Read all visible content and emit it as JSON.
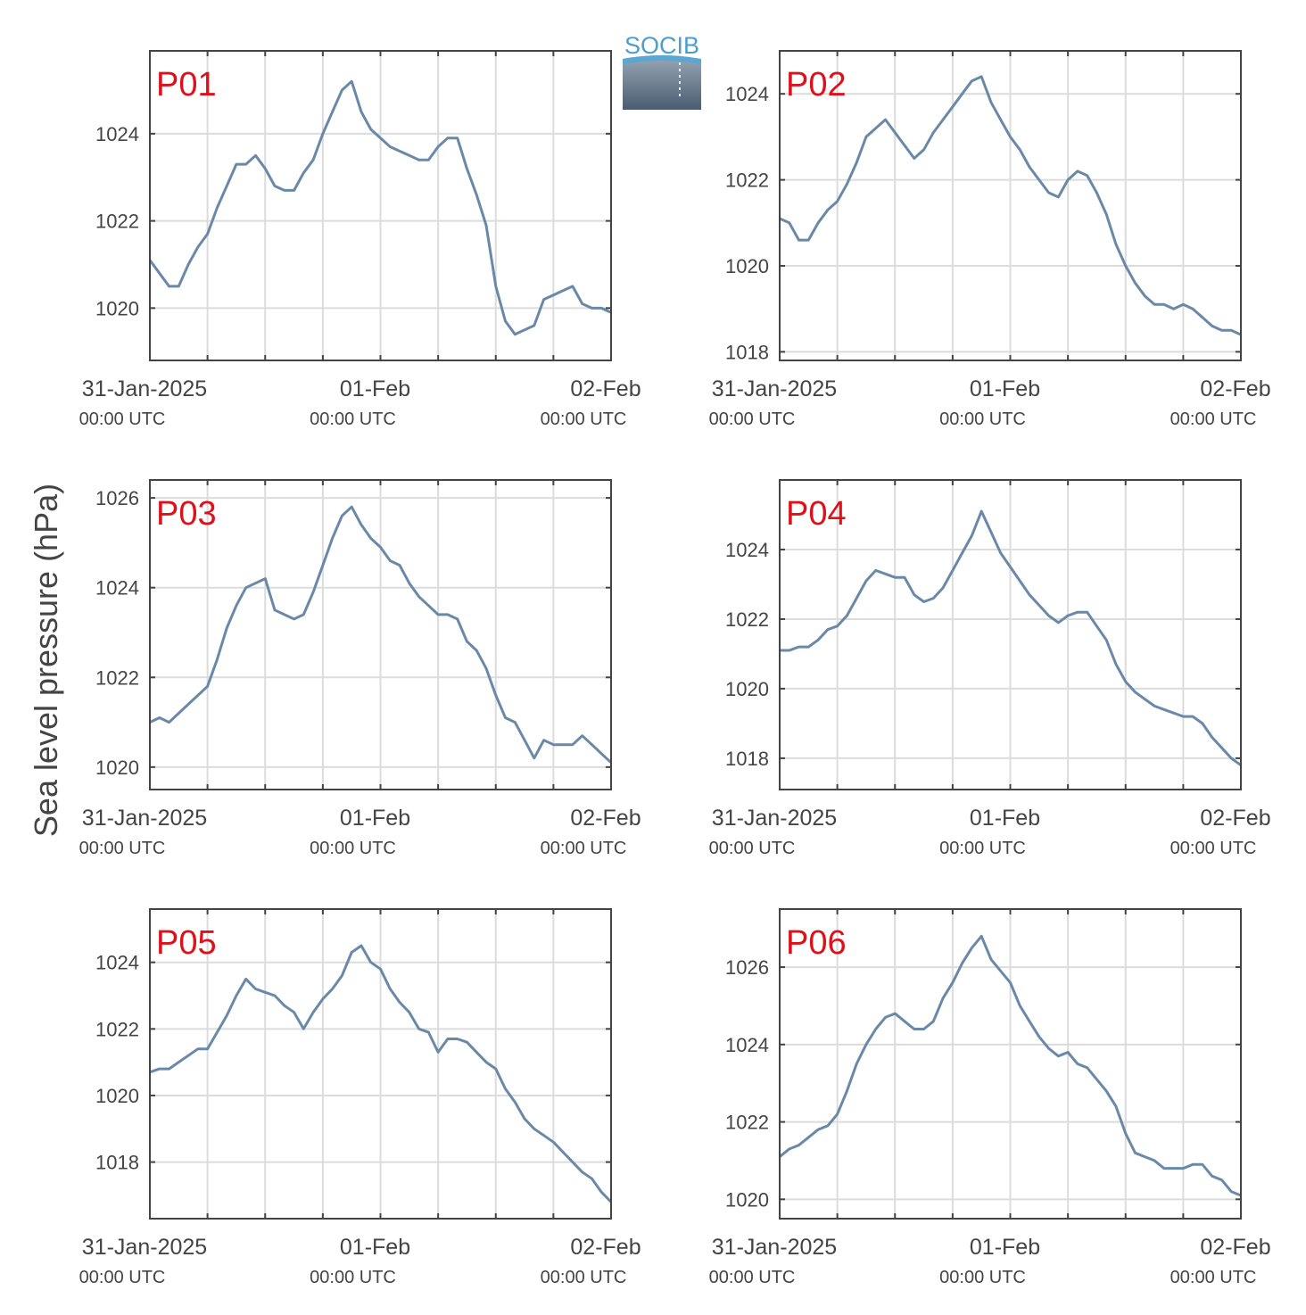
{
  "figure": {
    "ylabel": "Sea level pressure (hPa)",
    "logo_text": "SOCIB",
    "line_color": "#6a89a8",
    "panel_label_color": "#e0101a",
    "x_ticks": [
      {
        "date": "31-Jan-2025",
        "time": "00:00 UTC"
      },
      {
        "date": "01-Feb",
        "time": "00:00 UTC"
      },
      {
        "date": "02-Feb",
        "time": "00:00 UTC"
      }
    ]
  },
  "chart_data": [
    {
      "type": "line",
      "label": "P01",
      "x_unit": "hours since 31-Jan-2025 00:00 UTC",
      "ylim": [
        1018.8,
        1025.9
      ],
      "yticks": [
        1020,
        1022,
        1024
      ],
      "xlim": [
        0,
        48
      ],
      "grid": true,
      "points": [
        [
          0,
          1021.1
        ],
        [
          1,
          1020.8
        ],
        [
          2,
          1020.5
        ],
        [
          3,
          1020.5
        ],
        [
          4,
          1021.0
        ],
        [
          5,
          1021.4
        ],
        [
          6,
          1021.7
        ],
        [
          7,
          1022.3
        ],
        [
          8,
          1022.8
        ],
        [
          9,
          1023.3
        ],
        [
          10,
          1023.3
        ],
        [
          11,
          1023.5
        ],
        [
          12,
          1023.2
        ],
        [
          13,
          1022.8
        ],
        [
          14,
          1022.7
        ],
        [
          15,
          1022.7
        ],
        [
          16,
          1023.1
        ],
        [
          17,
          1023.4
        ],
        [
          18,
          1024.0
        ],
        [
          19,
          1024.5
        ],
        [
          20,
          1025.0
        ],
        [
          21,
          1025.2
        ],
        [
          22,
          1024.5
        ],
        [
          23,
          1024.1
        ],
        [
          24,
          1023.9
        ],
        [
          25,
          1023.7
        ],
        [
          26,
          1023.6
        ],
        [
          27,
          1023.5
        ],
        [
          28,
          1023.4
        ],
        [
          29,
          1023.4
        ],
        [
          30,
          1023.7
        ],
        [
          31,
          1023.9
        ],
        [
          32,
          1023.9
        ],
        [
          33,
          1023.2
        ],
        [
          34,
          1022.6
        ],
        [
          35,
          1021.9
        ],
        [
          36,
          1020.5
        ],
        [
          37,
          1019.7
        ],
        [
          38,
          1019.4
        ],
        [
          39,
          1019.5
        ],
        [
          40,
          1019.6
        ],
        [
          41,
          1020.2
        ],
        [
          42,
          1020.3
        ],
        [
          43,
          1020.4
        ],
        [
          44,
          1020.5
        ],
        [
          45,
          1020.1
        ],
        [
          46,
          1020.0
        ],
        [
          47,
          1020.0
        ],
        [
          48,
          1019.9
        ]
      ]
    },
    {
      "type": "line",
      "label": "P02",
      "x_unit": "hours since 31-Jan-2025 00:00 UTC",
      "ylim": [
        1017.8,
        1025.0
      ],
      "yticks": [
        1018,
        1020,
        1022,
        1024
      ],
      "xlim": [
        0,
        48
      ],
      "grid": true,
      "points": [
        [
          0,
          1021.1
        ],
        [
          1,
          1021.0
        ],
        [
          2,
          1020.6
        ],
        [
          3,
          1020.6
        ],
        [
          4,
          1021.0
        ],
        [
          5,
          1021.3
        ],
        [
          6,
          1021.5
        ],
        [
          7,
          1021.9
        ],
        [
          8,
          1022.4
        ],
        [
          9,
          1023.0
        ],
        [
          10,
          1023.2
        ],
        [
          11,
          1023.4
        ],
        [
          12,
          1023.1
        ],
        [
          13,
          1022.8
        ],
        [
          14,
          1022.5
        ],
        [
          15,
          1022.7
        ],
        [
          16,
          1023.1
        ],
        [
          17,
          1023.4
        ],
        [
          18,
          1023.7
        ],
        [
          19,
          1024.0
        ],
        [
          20,
          1024.3
        ],
        [
          21,
          1024.4
        ],
        [
          22,
          1023.8
        ],
        [
          23,
          1023.4
        ],
        [
          24,
          1023.0
        ],
        [
          25,
          1022.7
        ],
        [
          26,
          1022.3
        ],
        [
          27,
          1022.0
        ],
        [
          28,
          1021.7
        ],
        [
          29,
          1021.6
        ],
        [
          30,
          1022.0
        ],
        [
          31,
          1022.2
        ],
        [
          32,
          1022.1
        ],
        [
          33,
          1021.7
        ],
        [
          34,
          1021.2
        ],
        [
          35,
          1020.5
        ],
        [
          36,
          1020.0
        ],
        [
          37,
          1019.6
        ],
        [
          38,
          1019.3
        ],
        [
          39,
          1019.1
        ],
        [
          40,
          1019.1
        ],
        [
          41,
          1019.0
        ],
        [
          42,
          1019.1
        ],
        [
          43,
          1019.0
        ],
        [
          44,
          1018.8
        ],
        [
          45,
          1018.6
        ],
        [
          46,
          1018.5
        ],
        [
          47,
          1018.5
        ],
        [
          48,
          1018.4
        ]
      ]
    },
    {
      "type": "line",
      "label": "P03",
      "x_unit": "hours since 31-Jan-2025 00:00 UTC",
      "ylim": [
        1019.5,
        1026.4
      ],
      "yticks": [
        1020,
        1022,
        1024,
        1026
      ],
      "xlim": [
        0,
        48
      ],
      "grid": true,
      "points": [
        [
          0,
          1021.0
        ],
        [
          1,
          1021.1
        ],
        [
          2,
          1021.0
        ],
        [
          3,
          1021.2
        ],
        [
          4,
          1021.4
        ],
        [
          5,
          1021.6
        ],
        [
          6,
          1021.8
        ],
        [
          7,
          1022.4
        ],
        [
          8,
          1023.1
        ],
        [
          9,
          1023.6
        ],
        [
          10,
          1024.0
        ],
        [
          11,
          1024.1
        ],
        [
          12,
          1024.2
        ],
        [
          13,
          1023.5
        ],
        [
          14,
          1023.4
        ],
        [
          15,
          1023.3
        ],
        [
          16,
          1023.4
        ],
        [
          17,
          1023.9
        ],
        [
          18,
          1024.5
        ],
        [
          19,
          1025.1
        ],
        [
          20,
          1025.6
        ],
        [
          21,
          1025.8
        ],
        [
          22,
          1025.4
        ],
        [
          23,
          1025.1
        ],
        [
          24,
          1024.9
        ],
        [
          25,
          1024.6
        ],
        [
          26,
          1024.5
        ],
        [
          27,
          1024.1
        ],
        [
          28,
          1023.8
        ],
        [
          29,
          1023.6
        ],
        [
          30,
          1023.4
        ],
        [
          31,
          1023.4
        ],
        [
          32,
          1023.3
        ],
        [
          33,
          1022.8
        ],
        [
          34,
          1022.6
        ],
        [
          35,
          1022.2
        ],
        [
          36,
          1021.6
        ],
        [
          37,
          1021.1
        ],
        [
          38,
          1021.0
        ],
        [
          39,
          1020.6
        ],
        [
          40,
          1020.2
        ],
        [
          41,
          1020.6
        ],
        [
          42,
          1020.5
        ],
        [
          43,
          1020.5
        ],
        [
          44,
          1020.5
        ],
        [
          45,
          1020.7
        ],
        [
          46,
          1020.5
        ],
        [
          47,
          1020.3
        ],
        [
          48,
          1020.1
        ]
      ]
    },
    {
      "type": "line",
      "label": "P04",
      "x_unit": "hours since 31-Jan-2025 00:00 UTC",
      "ylim": [
        1017.1,
        1026.0
      ],
      "yticks": [
        1018,
        1020,
        1022,
        1024
      ],
      "xlim": [
        0,
        48
      ],
      "grid": true,
      "points": [
        [
          0,
          1021.1
        ],
        [
          1,
          1021.1
        ],
        [
          2,
          1021.2
        ],
        [
          3,
          1021.2
        ],
        [
          4,
          1021.4
        ],
        [
          5,
          1021.7
        ],
        [
          6,
          1021.8
        ],
        [
          7,
          1022.1
        ],
        [
          8,
          1022.6
        ],
        [
          9,
          1023.1
        ],
        [
          10,
          1023.4
        ],
        [
          11,
          1023.3
        ],
        [
          12,
          1023.2
        ],
        [
          13,
          1023.2
        ],
        [
          14,
          1022.7
        ],
        [
          15,
          1022.5
        ],
        [
          16,
          1022.6
        ],
        [
          17,
          1022.9
        ],
        [
          18,
          1023.4
        ],
        [
          19,
          1023.9
        ],
        [
          20,
          1024.4
        ],
        [
          21,
          1025.1
        ],
        [
          22,
          1024.5
        ],
        [
          23,
          1023.9
        ],
        [
          24,
          1023.5
        ],
        [
          25,
          1023.1
        ],
        [
          26,
          1022.7
        ],
        [
          27,
          1022.4
        ],
        [
          28,
          1022.1
        ],
        [
          29,
          1021.9
        ],
        [
          30,
          1022.1
        ],
        [
          31,
          1022.2
        ],
        [
          32,
          1022.2
        ],
        [
          33,
          1021.8
        ],
        [
          34,
          1021.4
        ],
        [
          35,
          1020.7
        ],
        [
          36,
          1020.2
        ],
        [
          37,
          1019.9
        ],
        [
          38,
          1019.7
        ],
        [
          39,
          1019.5
        ],
        [
          40,
          1019.4
        ],
        [
          41,
          1019.3
        ],
        [
          42,
          1019.2
        ],
        [
          43,
          1019.2
        ],
        [
          44,
          1019.0
        ],
        [
          45,
          1018.6
        ],
        [
          46,
          1018.3
        ],
        [
          47,
          1018.0
        ],
        [
          48,
          1017.8
        ]
      ]
    },
    {
      "type": "line",
      "label": "P05",
      "x_unit": "hours since 31-Jan-2025 00:00 UTC",
      "ylim": [
        1016.3,
        1025.6
      ],
      "yticks": [
        1018,
        1020,
        1022,
        1024
      ],
      "xlim": [
        0,
        48
      ],
      "grid": true,
      "points": [
        [
          0,
          1020.7
        ],
        [
          1,
          1020.8
        ],
        [
          2,
          1020.8
        ],
        [
          3,
          1021.0
        ],
        [
          4,
          1021.2
        ],
        [
          5,
          1021.4
        ],
        [
          6,
          1021.4
        ],
        [
          7,
          1021.9
        ],
        [
          8,
          1022.4
        ],
        [
          9,
          1023.0
        ],
        [
          10,
          1023.5
        ],
        [
          11,
          1023.2
        ],
        [
          12,
          1023.1
        ],
        [
          13,
          1023.0
        ],
        [
          14,
          1022.7
        ],
        [
          15,
          1022.5
        ],
        [
          16,
          1022.0
        ],
        [
          17,
          1022.5
        ],
        [
          18,
          1022.9
        ],
        [
          19,
          1023.2
        ],
        [
          20,
          1023.6
        ],
        [
          21,
          1024.3
        ],
        [
          22,
          1024.5
        ],
        [
          23,
          1024.0
        ],
        [
          24,
          1023.8
        ],
        [
          25,
          1023.2
        ],
        [
          26,
          1022.8
        ],
        [
          27,
          1022.5
        ],
        [
          28,
          1022.0
        ],
        [
          29,
          1021.9
        ],
        [
          30,
          1021.3
        ],
        [
          31,
          1021.7
        ],
        [
          32,
          1021.7
        ],
        [
          33,
          1021.6
        ],
        [
          34,
          1021.3
        ],
        [
          35,
          1021.0
        ],
        [
          36,
          1020.8
        ],
        [
          37,
          1020.2
        ],
        [
          38,
          1019.8
        ],
        [
          39,
          1019.3
        ],
        [
          40,
          1019.0
        ],
        [
          41,
          1018.8
        ],
        [
          42,
          1018.6
        ],
        [
          43,
          1018.3
        ],
        [
          44,
          1018.0
        ],
        [
          45,
          1017.7
        ],
        [
          46,
          1017.5
        ],
        [
          47,
          1017.1
        ],
        [
          48,
          1016.8
        ]
      ]
    },
    {
      "type": "line",
      "label": "P06",
      "x_unit": "hours since 31-Jan-2025 00:00 UTC",
      "ylim": [
        1019.5,
        1027.5
      ],
      "yticks": [
        1020,
        1022,
        1024,
        1026
      ],
      "xlim": [
        0,
        48
      ],
      "grid": true,
      "points": [
        [
          0,
          1021.1
        ],
        [
          1,
          1021.3
        ],
        [
          2,
          1021.4
        ],
        [
          3,
          1021.6
        ],
        [
          4,
          1021.8
        ],
        [
          5,
          1021.9
        ],
        [
          6,
          1022.2
        ],
        [
          7,
          1022.8
        ],
        [
          8,
          1023.5
        ],
        [
          9,
          1024.0
        ],
        [
          10,
          1024.4
        ],
        [
          11,
          1024.7
        ],
        [
          12,
          1024.8
        ],
        [
          13,
          1024.6
        ],
        [
          14,
          1024.4
        ],
        [
          15,
          1024.4
        ],
        [
          16,
          1024.6
        ],
        [
          17,
          1025.2
        ],
        [
          18,
          1025.6
        ],
        [
          19,
          1026.1
        ],
        [
          20,
          1026.5
        ],
        [
          21,
          1026.8
        ],
        [
          22,
          1026.2
        ],
        [
          23,
          1025.9
        ],
        [
          24,
          1025.6
        ],
        [
          25,
          1025.0
        ],
        [
          26,
          1024.6
        ],
        [
          27,
          1024.2
        ],
        [
          28,
          1023.9
        ],
        [
          29,
          1023.7
        ],
        [
          30,
          1023.8
        ],
        [
          31,
          1023.5
        ],
        [
          32,
          1023.4
        ],
        [
          33,
          1023.1
        ],
        [
          34,
          1022.8
        ],
        [
          35,
          1022.4
        ],
        [
          36,
          1021.7
        ],
        [
          37,
          1021.2
        ],
        [
          38,
          1021.1
        ],
        [
          39,
          1021.0
        ],
        [
          40,
          1020.8
        ],
        [
          41,
          1020.8
        ],
        [
          42,
          1020.8
        ],
        [
          43,
          1020.9
        ],
        [
          44,
          1020.9
        ],
        [
          45,
          1020.6
        ],
        [
          46,
          1020.5
        ],
        [
          47,
          1020.2
        ],
        [
          48,
          1020.1
        ]
      ]
    }
  ]
}
